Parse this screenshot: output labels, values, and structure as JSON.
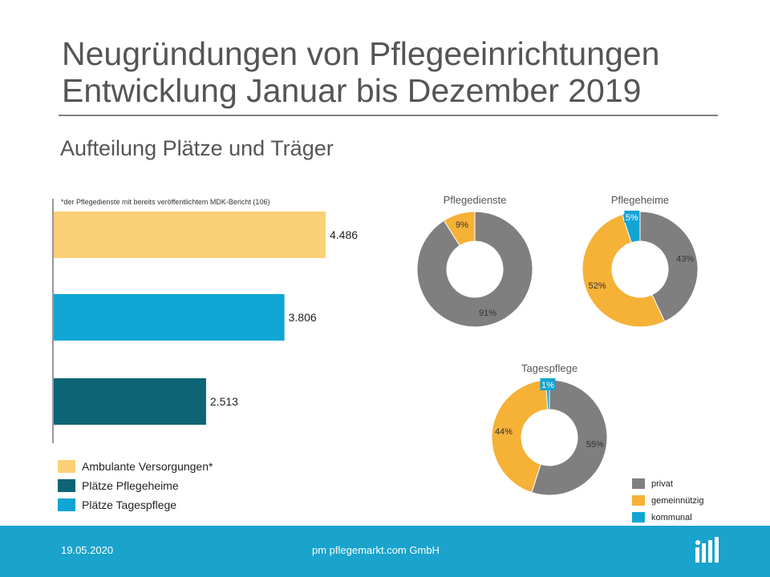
{
  "header": {
    "title_line1": "Neugründungen von Pflegeeinrichtungen",
    "title_line2": "Entwicklung Januar bis Dezember 2019",
    "subtitle": "Aufteilung Plätze und Träger"
  },
  "chart_data": [
    {
      "type": "bar",
      "orientation": "horizontal",
      "note": "*der Pflegedienste mit bereits veröffentlichtem MDK-Bericht (106)",
      "categories": [
        "Ambulante Versorgungen*",
        "Plätze Tagespflege",
        "Plätze Pflegeheime"
      ],
      "values": [
        4486,
        3806,
        2513
      ],
      "value_labels": [
        "4.486",
        "3.806",
        "2.513"
      ],
      "colors": [
        "#fcd077",
        "#10a5d4",
        "#0c6474"
      ],
      "xlim": [
        0,
        4486
      ]
    },
    {
      "type": "pie",
      "donut": true,
      "charts": [
        {
          "title": "Pflegedienste",
          "slices": [
            {
              "category": "privat",
              "value": 91,
              "label": "91%"
            },
            {
              "category": "gemeinnützig",
              "value": 9,
              "label": "9%"
            },
            {
              "category": "kommunal",
              "value": 0,
              "label": ""
            }
          ]
        },
        {
          "title": "Pflegeheime",
          "slices": [
            {
              "category": "privat",
              "value": 43,
              "label": "43%"
            },
            {
              "category": "gemeinnützig",
              "value": 52,
              "label": "52%"
            },
            {
              "category": "kommunal",
              "value": 5,
              "label": "5%"
            }
          ]
        },
        {
          "title": "Tagespflege",
          "slices": [
            {
              "category": "privat",
              "value": 55,
              "label": "55%"
            },
            {
              "category": "gemeinnützig",
              "value": 44,
              "label": "44%"
            },
            {
              "category": "kommunal",
              "value": 1,
              "label": "1%"
            }
          ]
        }
      ],
      "legend": [
        {
          "name": "privat",
          "color": "#7f7f7f"
        },
        {
          "name": "gemeinnützig",
          "color": "#f6b137"
        },
        {
          "name": "kommunal",
          "color": "#12a5d2"
        }
      ],
      "legend_position": "bottom-right"
    }
  ],
  "bar_legend": [
    {
      "label": "Ambulante Versorgungen*",
      "color": "#fcd077"
    },
    {
      "label": "Plätze Pflegeheime",
      "color": "#0c6474"
    },
    {
      "label": "Plätze Tagespflege",
      "color": "#10a5d4"
    }
  ],
  "footer": {
    "date": "19.05.2020",
    "company": "pm pflegemarkt.com GmbH",
    "logo_icon": "pflegemarkt-logo-icon",
    "background": "#1aa3cc"
  }
}
